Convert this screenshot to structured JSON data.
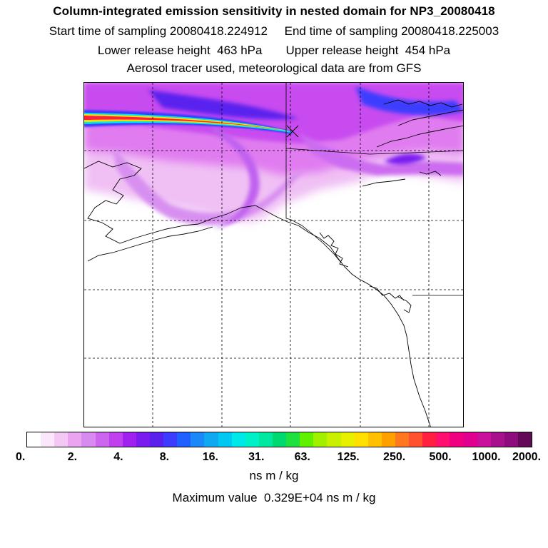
{
  "header": {
    "title": "Column-integrated emission sensitivity in nested domain for NP3_20080418",
    "line2": "Start time of sampling 20080418.224912     End time of sampling 20080418.225003",
    "line3": "Lower release height  463 hPa       Upper release height  454 hPa",
    "line4": "Aerosol tracer used, meteorological data are from GFS"
  },
  "legend": {
    "tick_labels": [
      "0.",
      "2.",
      "4.",
      "8.",
      "16.",
      "31.",
      "63.",
      "125.",
      "250.",
      "500.",
      "1000.",
      "2000."
    ],
    "colors": [
      "#ffffff",
      "#fbe6fb",
      "#f4c8f4",
      "#eaa4f0",
      "#d98af0",
      "#cc66ee",
      "#c040f0",
      "#a020f0",
      "#7a1cf0",
      "#5a20ee",
      "#3c3cff",
      "#2060ff",
      "#1a88f8",
      "#10a8f0",
      "#00c8f0",
      "#00e8e8",
      "#00f0c8",
      "#00e8a0",
      "#00d870",
      "#20e040",
      "#60f000",
      "#a0f000",
      "#c8f000",
      "#e8f000",
      "#ffe000",
      "#ffc000",
      "#ffa000",
      "#ff7820",
      "#ff5030",
      "#ff2040",
      "#ff1070",
      "#f00080",
      "#e00090",
      "#c8109c",
      "#a8108c",
      "#8c0c7c",
      "#640858"
    ],
    "unit": "ns m / kg",
    "max_value": "Maximum value  0.329E+04 ns m / kg"
  }
}
